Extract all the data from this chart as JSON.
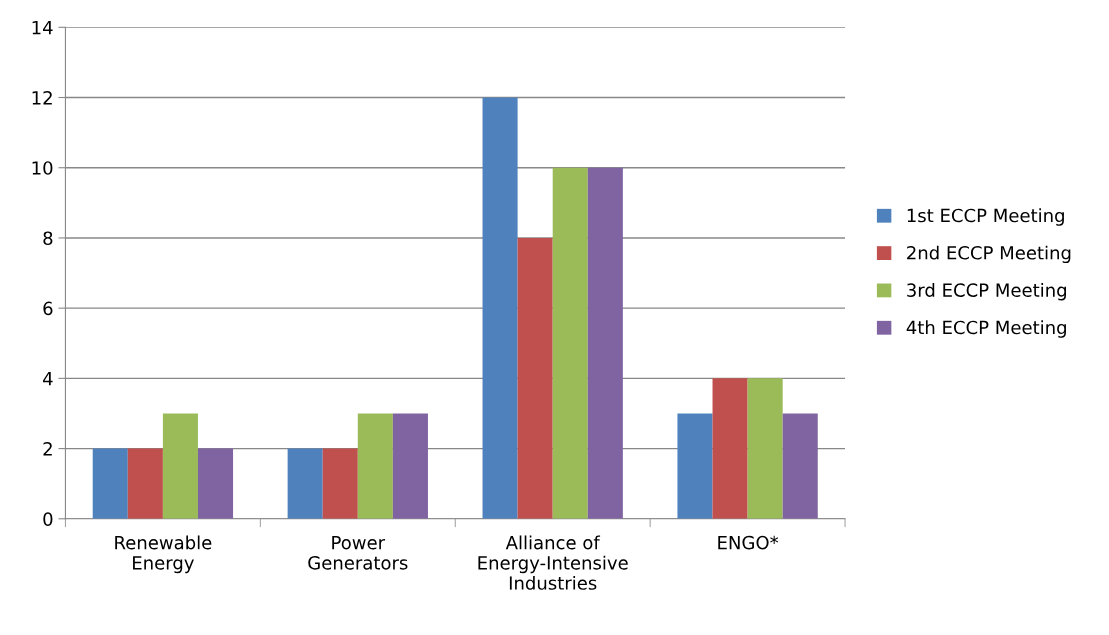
{
  "chart_data": {
    "type": "bar",
    "categories": [
      "Renewable\nEnergy",
      "Power\nGenerators",
      "Alliance of\nEnergy-Intensive\nIndustries",
      "ENGO*"
    ],
    "series": [
      {
        "name": "1st ECCP Meeting",
        "color": "#4f81bd",
        "values": [
          2,
          2,
          12,
          3
        ]
      },
      {
        "name": "2nd ECCP Meeting",
        "color": "#c0504d",
        "values": [
          2,
          2,
          8,
          4
        ]
      },
      {
        "name": "3rd ECCP Meeting",
        "color": "#9bbb59",
        "values": [
          3,
          3,
          10,
          4
        ]
      },
      {
        "name": "4th ECCP Meeting",
        "color": "#8064a2",
        "values": [
          2,
          3,
          10,
          3
        ]
      }
    ],
    "ylim": [
      0,
      14
    ],
    "yticks": [
      0,
      2,
      4,
      6,
      8,
      10,
      12,
      14
    ],
    "grid": "y",
    "legend": "right"
  }
}
